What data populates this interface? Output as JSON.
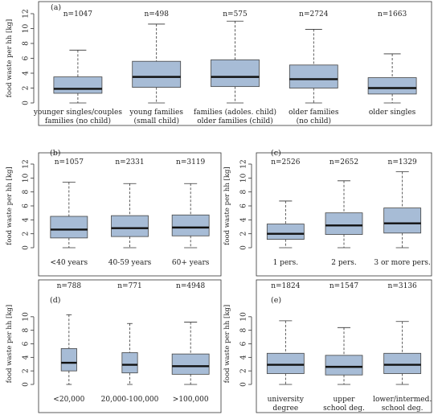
{
  "chart_data": [
    {
      "type": "box",
      "panel_label": "(a)",
      "ylabel": "food waste per hh [kg]",
      "ylim": [
        0,
        12
      ],
      "yticks": [
        0,
        2,
        4,
        6,
        8,
        10,
        12
      ],
      "categories": [
        [
          "younger singles/couples",
          "families (no child)"
        ],
        [
          "young families",
          "(small child)"
        ],
        [
          "families (adoles. child)",
          "older families (child)"
        ],
        [
          "older families",
          "(no child)"
        ],
        [
          "older singles"
        ]
      ],
      "n": [
        "n=1047",
        "n=498",
        "n=575",
        "n=2724",
        "n=1663"
      ],
      "boxes": [
        {
          "min": 0,
          "q1": 1.3,
          "median": 1.9,
          "q3": 3.5,
          "max": 7.1
        },
        {
          "min": 0,
          "q1": 2.1,
          "median": 3.5,
          "q3": 5.6,
          "max": 10.6
        },
        {
          "min": 0,
          "q1": 2.2,
          "median": 3.5,
          "q3": 5.8,
          "max": 11.0
        },
        {
          "min": 0,
          "q1": 2.0,
          "median": 3.2,
          "q3": 5.1,
          "max": 9.9
        },
        {
          "min": 0,
          "q1": 1.2,
          "median": 2.0,
          "q3": 3.4,
          "max": 6.6
        }
      ]
    },
    {
      "type": "box",
      "panel_label": "(b)",
      "ylabel": "food waste per hh [kg]",
      "ylim": [
        0,
        12
      ],
      "yticks": [
        0,
        2,
        4,
        6,
        8,
        10,
        12
      ],
      "categories": [
        [
          "<40 years"
        ],
        [
          "40-59 years"
        ],
        [
          "60+ years"
        ]
      ],
      "n": [
        "n=1057",
        "n=2331",
        "n=3119"
      ],
      "boxes": [
        {
          "min": 0,
          "q1": 1.4,
          "median": 2.6,
          "q3": 4.5,
          "max": 9.4
        },
        {
          "min": 0,
          "q1": 1.6,
          "median": 2.8,
          "q3": 4.6,
          "max": 9.2
        },
        {
          "min": 0,
          "q1": 1.7,
          "median": 2.9,
          "q3": 4.7,
          "max": 9.2
        }
      ]
    },
    {
      "type": "box",
      "panel_label": "(c)",
      "ylabel": "food waste per hh [kg]",
      "ylim": [
        0,
        12
      ],
      "yticks": [
        0,
        2,
        4,
        6,
        8,
        10,
        12
      ],
      "categories": [
        [
          "1 pers."
        ],
        [
          "2 pers."
        ],
        [
          "3 or more pers."
        ]
      ],
      "n": [
        "n=2526",
        "n=2652",
        "n=1329"
      ],
      "boxes": [
        {
          "min": 0,
          "q1": 1.2,
          "median": 2.0,
          "q3": 3.4,
          "max": 6.7
        },
        {
          "min": 0,
          "q1": 1.9,
          "median": 3.2,
          "q3": 5.0,
          "max": 9.6
        },
        {
          "min": 0,
          "q1": 2.1,
          "median": 3.5,
          "q3": 5.7,
          "max": 10.9
        }
      ]
    },
    {
      "type": "box",
      "panel_label": "(d)",
      "ylabel": "food waste per hh [kg]",
      "ylim": [
        0,
        12
      ],
      "yticks": [
        0,
        2,
        4,
        6,
        8,
        10
      ],
      "categories": [
        [
          "<20,000"
        ],
        [
          "20,000-100,000"
        ],
        [
          ">100,000"
        ]
      ],
      "n": [
        "n=788",
        "n=771",
        "n=4948"
      ],
      "box_widths": [
        0.42,
        0.42,
        1.0
      ],
      "boxes": [
        {
          "min": 0,
          "q1": 2.0,
          "median": 3.2,
          "q3": 5.3,
          "max": 10.3
        },
        {
          "min": 0,
          "q1": 1.7,
          "median": 2.9,
          "q3": 4.7,
          "max": 9.0
        },
        {
          "min": 0,
          "q1": 1.5,
          "median": 2.7,
          "q3": 4.5,
          "max": 9.2
        }
      ]
    },
    {
      "type": "box",
      "panel_label": "(e)",
      "ylabel": "food waste per hh [kg]",
      "ylim": [
        0,
        12
      ],
      "yticks": [
        0,
        2,
        4,
        6,
        8,
        10
      ],
      "categories": [
        [
          "university",
          "degree"
        ],
        [
          "upper",
          "school deg."
        ],
        [
          "lower/intermed.",
          "school deg."
        ]
      ],
      "n": [
        "n=1824",
        "n=1547",
        "n=3136"
      ],
      "boxes": [
        {
          "min": 0,
          "q1": 1.6,
          "median": 2.9,
          "q3": 4.6,
          "max": 9.4
        },
        {
          "min": 0,
          "q1": 1.4,
          "median": 2.6,
          "q3": 4.3,
          "max": 8.4
        },
        {
          "min": 0,
          "q1": 1.6,
          "median": 2.9,
          "q3": 4.6,
          "max": 9.3
        }
      ]
    }
  ]
}
